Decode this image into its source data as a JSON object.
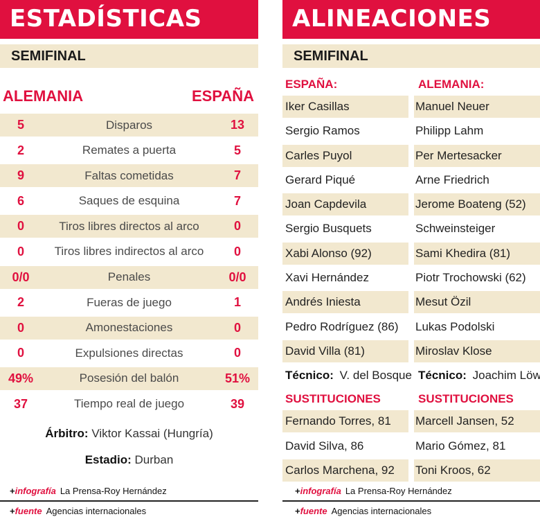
{
  "stats": {
    "title": "ESTADÍSTICAS",
    "subtitle": "SEMIFINAL",
    "team_left": "ALEMANIA",
    "team_right": "ESPAÑA",
    "rows": [
      {
        "left": "5",
        "label": "Disparos",
        "right": "13"
      },
      {
        "left": "2",
        "label": "Remates a puerta",
        "right": "5"
      },
      {
        "left": "9",
        "label": "Faltas cometidas",
        "right": "7"
      },
      {
        "left": "6",
        "label": "Saques de esquina",
        "right": "7"
      },
      {
        "left": "0",
        "label": "Tiros libres directos al arco",
        "right": "0"
      },
      {
        "left": "0",
        "label": "Tiros libres indirectos al arco",
        "right": "0"
      },
      {
        "left": "0/0",
        "label": "Penales",
        "right": "0/0"
      },
      {
        "left": "2",
        "label": "Fueras de juego",
        "right": "1"
      },
      {
        "left": "0",
        "label": "Amonestaciones",
        "right": "0"
      },
      {
        "left": "0",
        "label": "Expulsiones directas",
        "right": "0"
      },
      {
        "left": "49%",
        "label": "Posesión del balón",
        "right": "51%"
      },
      {
        "left": "37",
        "label": "Tiempo real de juego",
        "right": "39"
      }
    ],
    "referee_label": "Árbitro:",
    "referee_value": "Viktor Kassai (Hungría)",
    "stadium_label": "Estadio:",
    "stadium_value": "Durban"
  },
  "lineups": {
    "title": "ALINEACIONES",
    "subtitle": "SEMIFINAL",
    "team_left": "ESPAÑA:",
    "team_right": "ALEMANIA:",
    "players": [
      [
        "Iker Casillas",
        "Manuel Neuer"
      ],
      [
        "Sergio Ramos",
        "Philipp Lahm"
      ],
      [
        "Carles Puyol",
        "Per Mertesacker"
      ],
      [
        "Gerard Piqué",
        "Arne Friedrich"
      ],
      [
        "Joan Capdevila",
        "Jerome Boateng (52)"
      ],
      [
        "Sergio Busquets",
        "Schweinsteiger"
      ],
      [
        "Xabi Alonso (92)",
        "Sami Khedira (81)"
      ],
      [
        "Xavi Hernández",
        "Piotr Trochowski (62)"
      ],
      [
        "Andrés Iniesta",
        "Mesut Özil"
      ],
      [
        "Pedro Rodríguez (86)",
        "Lukas Podolski"
      ],
      [
        "David Villa (81)",
        "Miroslav Klose"
      ]
    ],
    "coach_label": "Técnico:",
    "coach_left": "V. del Bosque",
    "coach_right": "Joachim Löw",
    "subs_heading_left": "SUSTITUCIONES",
    "subs_heading_right": "SUSTITUCIONES",
    "subs": [
      [
        "Fernando Torres, 81",
        "Marcell Jansen, 52"
      ],
      [
        "David Silva, 86",
        "Mario Gómez, 81"
      ],
      [
        "Carlos Marchena, 92",
        "Toni Kroos, 62"
      ]
    ]
  },
  "credits": {
    "plus": "+",
    "infografia_label": "infografía",
    "infografia_value": "La Prensa-Roy Hernández",
    "fuente_label": "fuente",
    "fuente_value": "Agencias internacionales"
  },
  "colors": {
    "accent": "#e0103f",
    "band": "#f2e8cf"
  }
}
